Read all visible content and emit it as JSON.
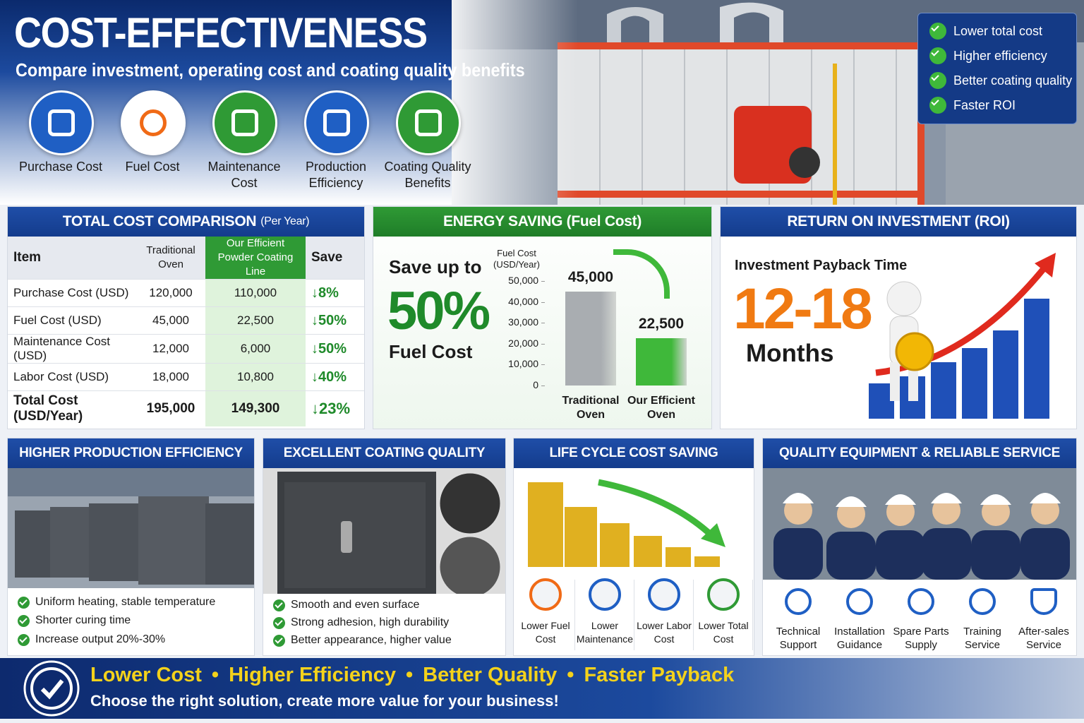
{
  "header": {
    "title": "COST-EFFECTIVENESS",
    "subtitle": "Compare investment, operating cost and coating quality benefits"
  },
  "icons": [
    "Purchase Cost",
    "Fuel Cost",
    "Maintenance Cost",
    "Production Efficiency",
    "Coating Quality Benefits"
  ],
  "highlights": [
    "Lower total cost",
    "Higher efficiency",
    "Better coating quality",
    "Faster ROI"
  ],
  "cost_table": {
    "title": "TOTAL COST COMPARISON",
    "title_note": "(Per Year)",
    "columns": [
      "Item",
      "Traditional Oven",
      "Our Efficient Powder Coating Line",
      "Save"
    ],
    "rows": [
      [
        "Purchase Cost (USD)",
        "120,000",
        "110,000",
        "↓8%"
      ],
      [
        "Fuel Cost (USD)",
        "45,000",
        "22,500",
        "↓50%"
      ],
      [
        "Maintenance Cost (USD)",
        "12,000",
        "6,000",
        "↓50%"
      ],
      [
        "Labor Cost (USD)",
        "18,000",
        "10,800",
        "↓40%"
      ],
      [
        "Total Cost (USD/Year)",
        "195,000",
        "149,300",
        "↓23%"
      ]
    ]
  },
  "energy": {
    "title": "ENERGY SAVING (Fuel Cost)",
    "lead": "Save up to",
    "percent": "50%",
    "label": "Fuel Cost"
  },
  "chart_data": {
    "type": "bar",
    "y_label": "Fuel Cost (USD/Year)",
    "categories": [
      "Traditional Oven",
      "Our Efficient Oven"
    ],
    "values": [
      45000,
      22500
    ],
    "value_labels": [
      "45,000",
      "22,500"
    ],
    "colors": [
      "#a9adb1",
      "#3fb83a"
    ],
    "ylim": [
      0,
      50000
    ],
    "yticks": [
      0,
      {
        "value": 10000,
        "label": "10,000"
      },
      {
        "value": 20000,
        "label": "20,000"
      },
      {
        "value": 30000,
        "label": "30,000"
      },
      {
        "value": 40000,
        "label": "40,000"
      },
      {
        "value": 50000,
        "label": "50,000"
      }
    ]
  },
  "roi": {
    "title": "RETURN ON INVESTMENT (ROI)",
    "label": "Investment Payback Time",
    "period": "12-18",
    "unit": "Months"
  },
  "efficiency": {
    "title": "HIGHER PRODUCTION EFFICIENCY",
    "bullets": [
      "Uniform heating, stable temperature",
      "Shorter curing time",
      "Increase output 20%-30%"
    ]
  },
  "coating": {
    "title": "EXCELLENT COATING QUALITY",
    "bullets": [
      "Smooth and even surface",
      "Strong adhesion, high durability",
      "Better appearance, higher value"
    ]
  },
  "lifecycle": {
    "title": "LIFE CYCLE COST SAVING",
    "items": [
      "Lower Fuel Cost",
      "Lower Maintenance",
      "Lower Labor Cost",
      "Lower Total Cost"
    ]
  },
  "service": {
    "title": "QUALITY EQUIPMENT & RELIABLE SERVICE",
    "items": [
      "Technical Support",
      "Installation Guidance",
      "Spare Parts Supply",
      "Training Service",
      "After-sales Service"
    ]
  },
  "footer": {
    "slogans": [
      "Lower Cost",
      "Higher Efficiency",
      "Better Quality",
      "Faster Payback"
    ],
    "tagline": "Choose the right solution, create more value for your business!"
  }
}
